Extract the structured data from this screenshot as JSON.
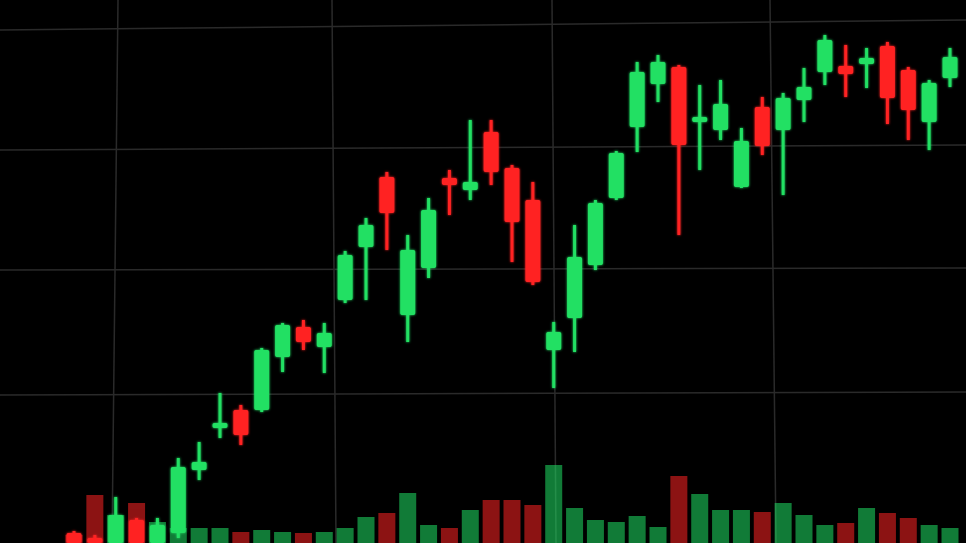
{
  "chart_data": {
    "type": "candlestick",
    "open": [
      10,
      5,
      0,
      23,
      0,
      10,
      73,
      115,
      133,
      133,
      186,
      216,
      196,
      243,
      296,
      366,
      228,
      275,
      365,
      353,
      411,
      375,
      343,
      193,
      225,
      278,
      345,
      416,
      459,
      476,
      421,
      413,
      356,
      436,
      413,
      443,
      471,
      477,
      479,
      497,
      473,
      421,
      465
    ],
    "high": [
      12,
      8,
      46,
      25,
      25,
      85,
      101,
      150,
      138,
      195,
      220,
      223,
      220,
      292,
      325,
      371,
      308,
      345,
      373,
      423,
      423,
      378,
      361,
      221,
      318,
      343,
      392,
      481,
      488,
      478,
      458,
      463,
      415,
      446,
      450,
      475,
      508,
      498,
      495,
      501,
      476,
      463,
      495
    ],
    "low": [
      0,
      0,
      0,
      0,
      0,
      5,
      63,
      105,
      98,
      131,
      171,
      193,
      170,
      240,
      243,
      293,
      201,
      265,
      328,
      343,
      358,
      281,
      258,
      155,
      191,
      273,
      343,
      391,
      441,
      308,
      373,
      403,
      355,
      388,
      348,
      421,
      458,
      446,
      455,
      419,
      403,
      393,
      456
    ],
    "close": [
      0,
      0,
      28,
      0,
      18,
      76,
      81,
      120,
      108,
      193,
      218,
      201,
      210,
      288,
      318,
      330,
      293,
      333,
      358,
      361,
      371,
      321,
      261,
      211,
      286,
      340,
      390,
      471,
      481,
      398,
      426,
      439,
      402,
      397,
      445,
      456,
      503,
      469,
      485,
      445,
      433,
      460,
      486
    ],
    "volume": [
      8,
      48,
      28,
      40,
      21,
      15,
      15,
      15,
      11,
      13,
      11,
      10,
      11,
      15,
      26,
      30,
      50,
      18,
      15,
      33,
      43,
      43,
      38,
      78,
      35,
      23,
      21,
      27,
      16,
      67,
      49,
      33,
      33,
      31,
      40,
      28,
      18,
      20,
      35,
      30,
      25,
      18,
      15
    ],
    "ylim": [
      0,
      543
    ],
    "up_color": "#20e064",
    "down_color": "#ff2424",
    "grid": true
  }
}
